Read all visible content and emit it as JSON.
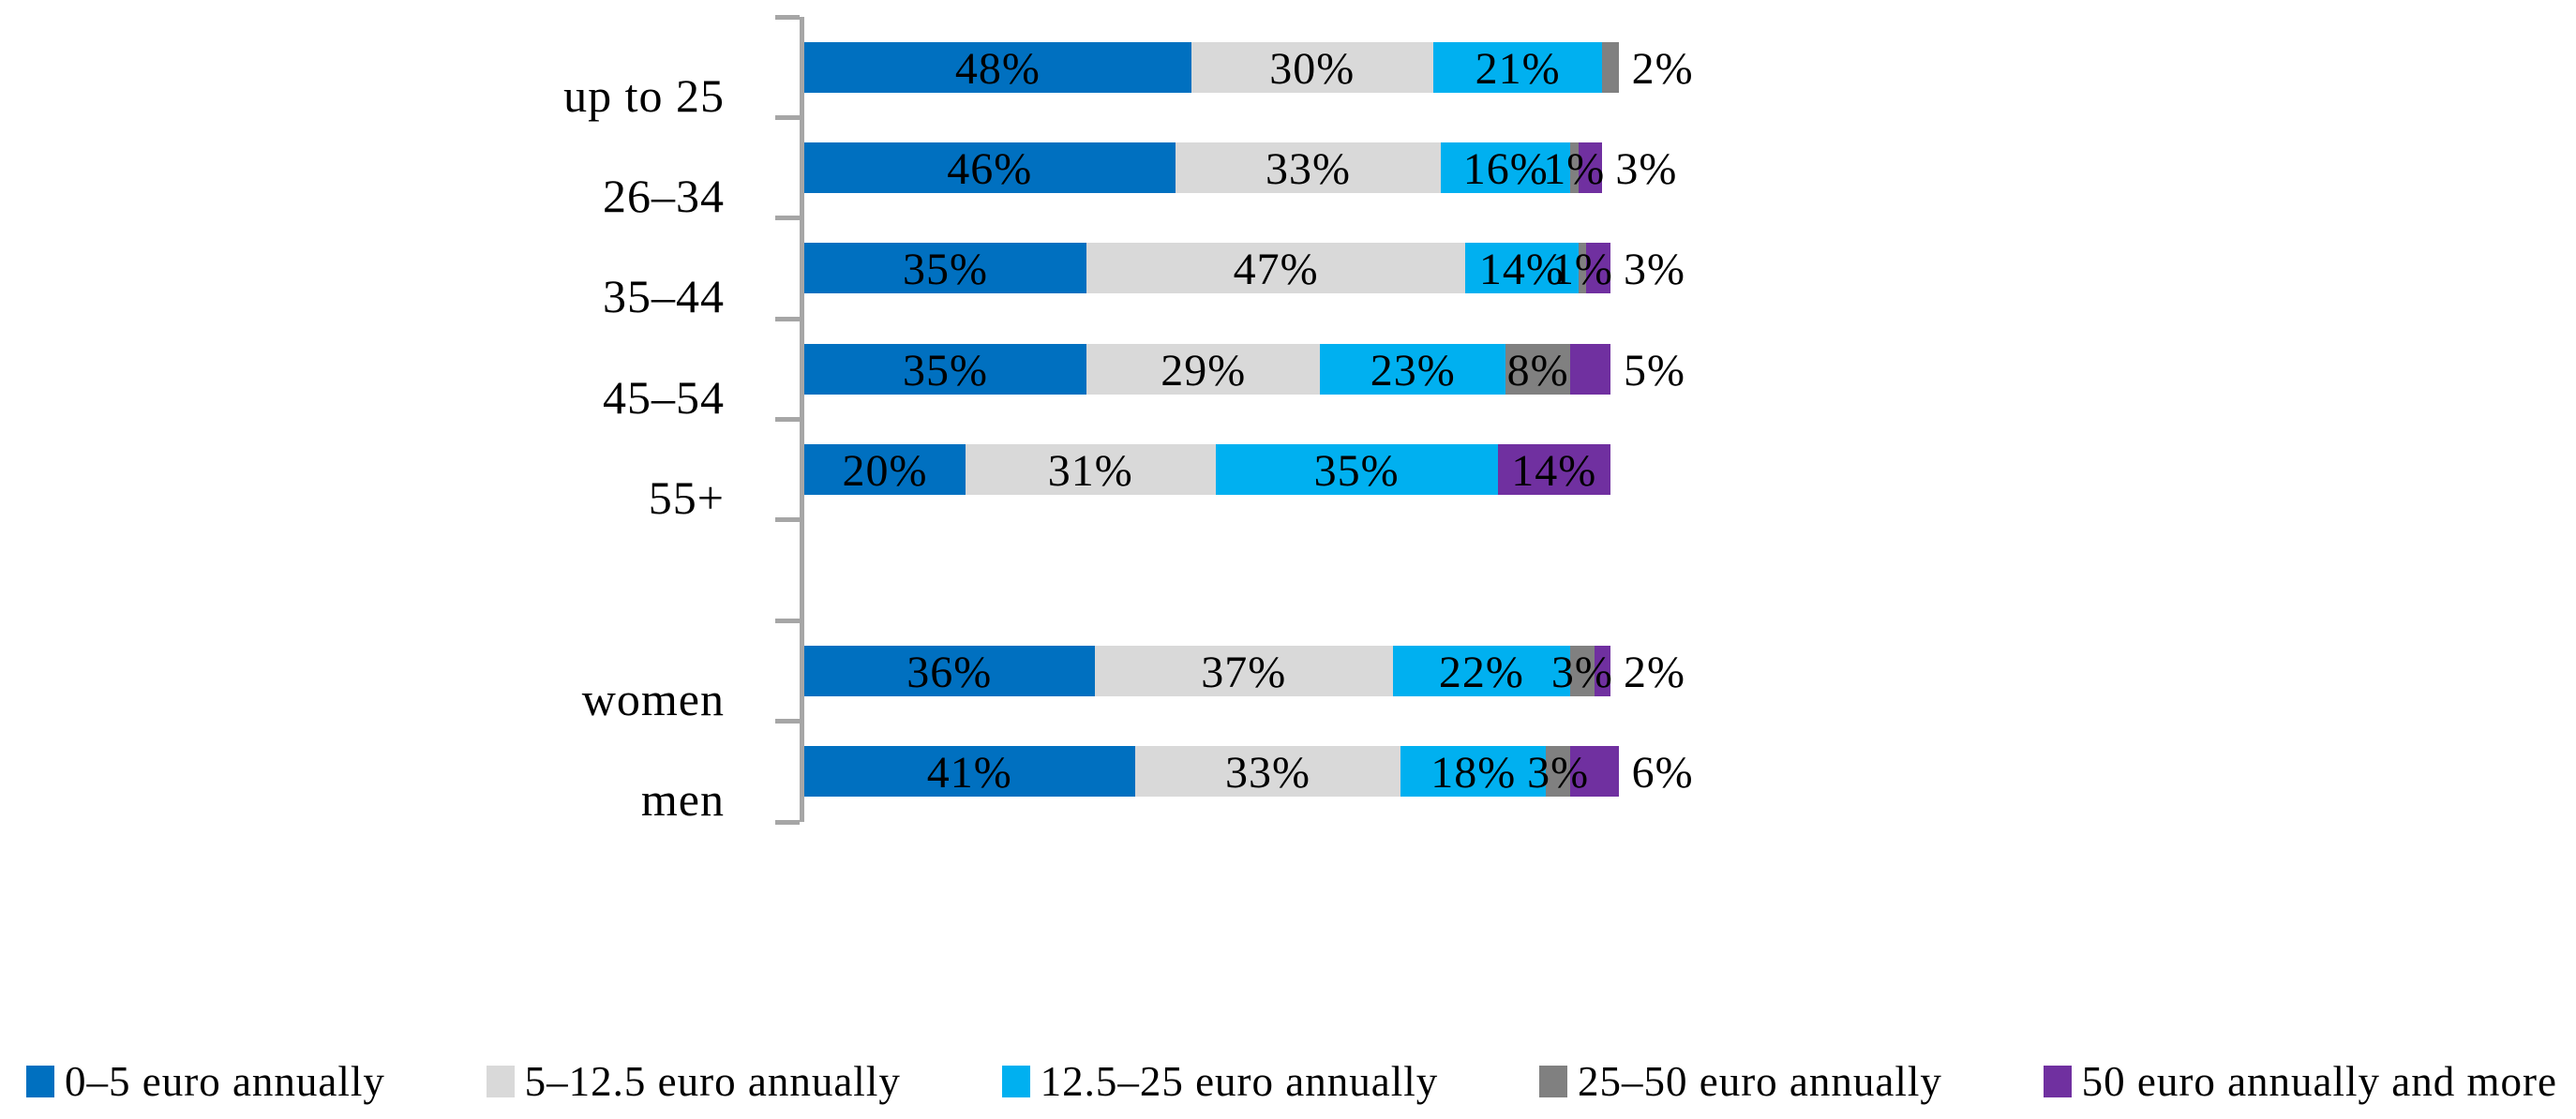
{
  "chart_data": {
    "type": "bar",
    "orientation": "horizontal",
    "stacked": true,
    "unit": "%",
    "title": "",
    "xlabel": "",
    "ylabel": "",
    "value_axis_visible": false,
    "legend_position": "bottom",
    "axis_color": "#A6A6A6",
    "categories": [
      "up to 25",
      "26–34",
      "35–44",
      "45–54",
      "55+",
      "",
      "women",
      "men"
    ],
    "series": [
      {
        "key": "0-5-euro",
        "name": "0–5 euro annually",
        "color": "#0070C0",
        "values": [
          48,
          46,
          35,
          35,
          20,
          null,
          36,
          41
        ]
      },
      {
        "key": "5-12-5-euro",
        "name": "5–12.5 euro annually",
        "color": "#D9D9D9",
        "values": [
          30,
          33,
          47,
          29,
          31,
          null,
          37,
          33
        ]
      },
      {
        "key": "12-5-25-euro",
        "name": "12.5–25 euro annually",
        "color": "#00B0F0",
        "values": [
          21,
          16,
          14,
          23,
          35,
          null,
          22,
          18
        ]
      },
      {
        "key": "25-50-euro",
        "name": "25–50 euro annually",
        "color": "#808080",
        "values": [
          2,
          1,
          1,
          8,
          0,
          null,
          3,
          3
        ]
      },
      {
        "key": "50-plus-euro",
        "name": "50 euro annually and more",
        "color": "#7030A0",
        "values": [
          0,
          3,
          3,
          5,
          14,
          null,
          2,
          6
        ]
      }
    ],
    "rows": [
      {
        "label": "up to 25",
        "segments": [
          {
            "series": 0,
            "value": 48,
            "text": "48%"
          },
          {
            "series": 1,
            "value": 30,
            "text": "30%"
          },
          {
            "series": 2,
            "value": 21,
            "text": "21%"
          },
          {
            "series": 3,
            "value": 2,
            "text": null
          }
        ],
        "outside_label": "2%"
      },
      {
        "label": "26–34",
        "segments": [
          {
            "series": 0,
            "value": 46,
            "text": "46%"
          },
          {
            "series": 1,
            "value": 33,
            "text": "33%"
          },
          {
            "series": 2,
            "value": 16,
            "text": "16%"
          },
          {
            "series": 3,
            "value": 1,
            "text": "1%"
          },
          {
            "series": 4,
            "value": 3,
            "text": null
          }
        ],
        "outside_label": "3%"
      },
      {
        "label": "35–44",
        "segments": [
          {
            "series": 0,
            "value": 35,
            "text": "35%"
          },
          {
            "series": 1,
            "value": 47,
            "text": "47%"
          },
          {
            "series": 2,
            "value": 14,
            "text": "14%"
          },
          {
            "series": 3,
            "value": 1,
            "text": "1%"
          },
          {
            "series": 4,
            "value": 3,
            "text": null
          }
        ],
        "outside_label": "3%"
      },
      {
        "label": "45–54",
        "segments": [
          {
            "series": 0,
            "value": 35,
            "text": "35%"
          },
          {
            "series": 1,
            "value": 29,
            "text": "29%"
          },
          {
            "series": 2,
            "value": 23,
            "text": "23%"
          },
          {
            "series": 3,
            "value": 8,
            "text": "8%"
          },
          {
            "series": 4,
            "value": 5,
            "text": null
          }
        ],
        "outside_label": "5%"
      },
      {
        "label": "55+",
        "segments": [
          {
            "series": 0,
            "value": 20,
            "text": "20%"
          },
          {
            "series": 1,
            "value": 31,
            "text": "31%"
          },
          {
            "series": 2,
            "value": 35,
            "text": "35%"
          },
          {
            "series": 4,
            "value": 14,
            "text": "14%"
          }
        ],
        "outside_label": null
      },
      {
        "label": "",
        "segments": [],
        "outside_label": null
      },
      {
        "label": "women",
        "segments": [
          {
            "series": 0,
            "value": 36,
            "text": "36%"
          },
          {
            "series": 1,
            "value": 37,
            "text": "37%"
          },
          {
            "series": 2,
            "value": 22,
            "text": "22%"
          },
          {
            "series": 3,
            "value": 3,
            "text": "3%"
          },
          {
            "series": 4,
            "value": 2,
            "text": null
          }
        ],
        "outside_label": "2%"
      },
      {
        "label": "men",
        "segments": [
          {
            "series": 0,
            "value": 41,
            "text": "41%"
          },
          {
            "series": 1,
            "value": 33,
            "text": "33%"
          },
          {
            "series": 2,
            "value": 18,
            "text": "18%"
          },
          {
            "series": 3,
            "value": 3,
            "text": "3%"
          },
          {
            "series": 4,
            "value": 6,
            "text": null
          }
        ],
        "outside_label": "6%"
      }
    ]
  }
}
